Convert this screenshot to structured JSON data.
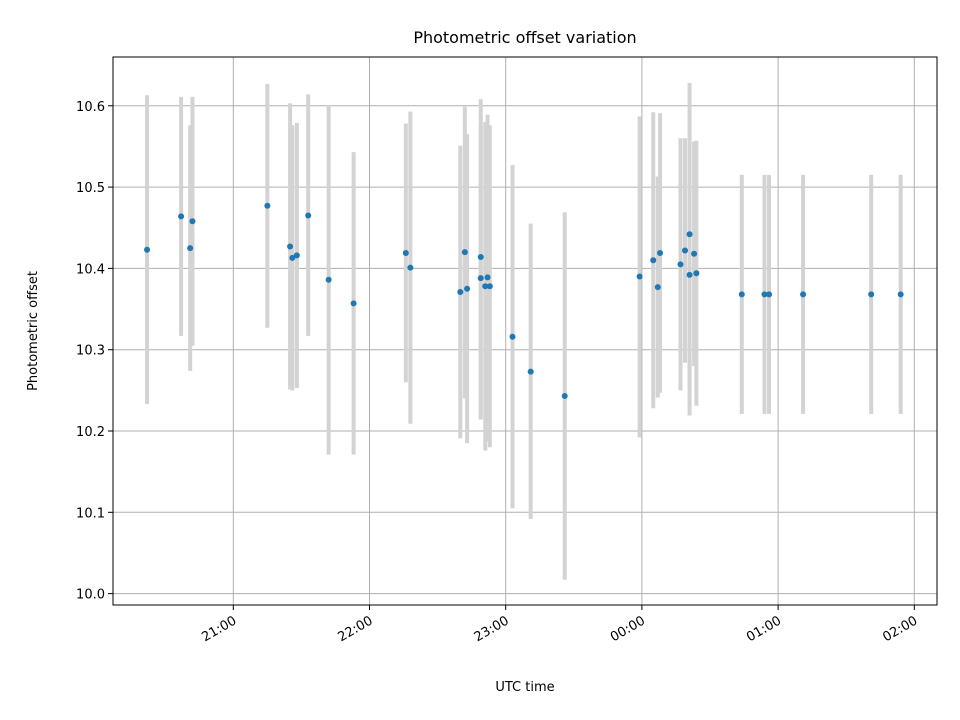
{
  "chart_data": {
    "type": "scatter",
    "title": "Photometric offset variation",
    "xlabel": "UTC time",
    "ylabel": "Photometric offset",
    "x_unit": "hours since 20:00 UTC of first night; ticks at 21:00..02:00",
    "xlim": [
      "20:07",
      "02:10"
    ],
    "ylim": [
      9.986,
      10.66
    ],
    "x_ticks": [
      "21:00",
      "22:00",
      "23:00",
      "00:00",
      "01:00",
      "02:00"
    ],
    "y_ticks": [
      "10.0",
      "10.1",
      "10.2",
      "10.3",
      "10.4",
      "10.5",
      "10.6"
    ],
    "grid": true,
    "points": [
      {
        "t": "20:22",
        "y": 10.423,
        "lo": 10.233,
        "hi": 10.613
      },
      {
        "t": "20:37",
        "y": 10.464,
        "lo": 10.317,
        "hi": 10.611
      },
      {
        "t": "20:41",
        "y": 10.425,
        "lo": 10.274,
        "hi": 10.576
      },
      {
        "t": "20:42",
        "y": 10.458,
        "lo": 10.305,
        "hi": 10.611
      },
      {
        "t": "21:15",
        "y": 10.477,
        "lo": 10.327,
        "hi": 10.627
      },
      {
        "t": "21:25",
        "y": 10.427,
        "lo": 10.251,
        "hi": 10.603
      },
      {
        "t": "21:26",
        "y": 10.413,
        "lo": 10.25,
        "hi": 10.576
      },
      {
        "t": "21:28",
        "y": 10.416,
        "lo": 10.253,
        "hi": 10.579
      },
      {
        "t": "21:33",
        "y": 10.465,
        "lo": 10.317,
        "hi": 10.614
      },
      {
        "t": "21:42",
        "y": 10.386,
        "lo": 10.171,
        "hi": 10.601
      },
      {
        "t": "21:53",
        "y": 10.357,
        "lo": 10.171,
        "hi": 10.543
      },
      {
        "t": "22:16",
        "y": 10.419,
        "lo": 10.26,
        "hi": 10.578
      },
      {
        "t": "22:18",
        "y": 10.401,
        "lo": 10.209,
        "hi": 10.593
      },
      {
        "t": "22:40",
        "y": 10.371,
        "lo": 10.191,
        "hi": 10.551
      },
      {
        "t": "22:42",
        "y": 10.42,
        "lo": 10.24,
        "hi": 10.599
      },
      {
        "t": "22:43",
        "y": 10.375,
        "lo": 10.185,
        "hi": 10.565
      },
      {
        "t": "22:49",
        "y": 10.414,
        "lo": 10.217,
        "hi": 10.608
      },
      {
        "t": "22:49",
        "y": 10.388,
        "lo": 10.214,
        "hi": 10.577
      },
      {
        "t": "22:51",
        "y": 10.378,
        "lo": 10.176,
        "hi": 10.58
      },
      {
        "t": "22:52",
        "y": 10.389,
        "lo": 10.187,
        "hi": 10.589
      },
      {
        "t": "22:53",
        "y": 10.378,
        "lo": 10.18,
        "hi": 10.576
      },
      {
        "t": "23:03",
        "y": 10.316,
        "lo": 10.105,
        "hi": 10.527
      },
      {
        "t": "23:11",
        "y": 10.273,
        "lo": 10.092,
        "hi": 10.455
      },
      {
        "t": "23:26",
        "y": 10.243,
        "lo": 10.017,
        "hi": 10.469
      },
      {
        "t": "23:59",
        "y": 10.39,
        "lo": 10.192,
        "hi": 10.587
      },
      {
        "t": "00:05",
        "y": 10.41,
        "lo": 10.228,
        "hi": 10.592
      },
      {
        "t": "00:07",
        "y": 10.377,
        "lo": 10.241,
        "hi": 10.513
      },
      {
        "t": "00:08",
        "y": 10.419,
        "lo": 10.247,
        "hi": 10.591
      },
      {
        "t": "00:17",
        "y": 10.405,
        "lo": 10.25,
        "hi": 10.56
      },
      {
        "t": "00:19",
        "y": 10.422,
        "lo": 10.284,
        "hi": 10.56
      },
      {
        "t": "00:21",
        "y": 10.392,
        "lo": 10.219,
        "hi": 10.565
      },
      {
        "t": "00:21",
        "y": 10.442,
        "lo": 10.256,
        "hi": 10.628
      },
      {
        "t": "00:23",
        "y": 10.418,
        "lo": 10.28,
        "hi": 10.556
      },
      {
        "t": "00:24",
        "y": 10.394,
        "lo": 10.231,
        "hi": 10.557
      },
      {
        "t": "00:44",
        "y": 10.368,
        "lo": 10.221,
        "hi": 10.515
      },
      {
        "t": "00:54",
        "y": 10.368,
        "lo": 10.221,
        "hi": 10.515
      },
      {
        "t": "00:56",
        "y": 10.368,
        "lo": 10.221,
        "hi": 10.515
      },
      {
        "t": "01:11",
        "y": 10.368,
        "lo": 10.221,
        "hi": 10.515
      },
      {
        "t": "01:41",
        "y": 10.368,
        "lo": 10.221,
        "hi": 10.515
      },
      {
        "t": "01:54",
        "y": 10.368,
        "lo": 10.221,
        "hi": 10.515
      }
    ],
    "colors": {
      "point": "#1f77b4",
      "errorbar": "#d3d3d3",
      "grid": "#b0b0b0"
    }
  }
}
